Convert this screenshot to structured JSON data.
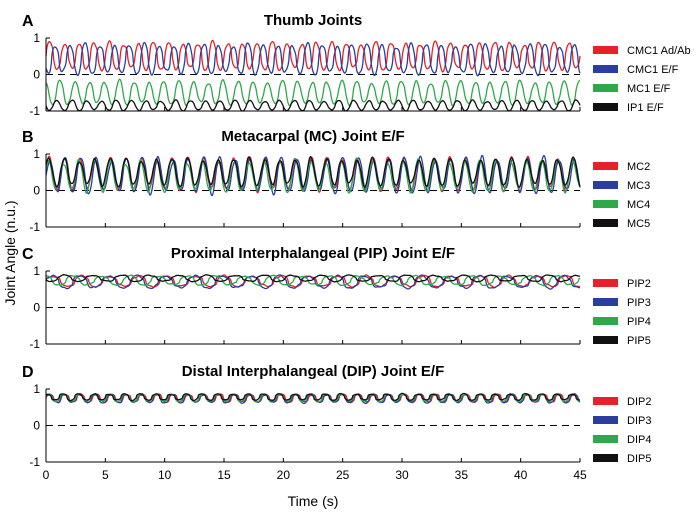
{
  "figure": {
    "ylabel": "Joint Angle (n.u.)",
    "xlabel": "Time (s)",
    "x_ticks": [
      "0",
      "5",
      "10",
      "15",
      "20",
      "25",
      "30",
      "35",
      "40",
      "45"
    ],
    "y_ticks": [
      "1",
      "0",
      "-1"
    ]
  },
  "chart_data": [
    {
      "type": "line",
      "panel_letter": "A",
      "title": "Thumb Joints",
      "xlim": [
        0,
        45
      ],
      "ylim": [
        -1,
        1
      ],
      "zero_line": "dashed",
      "legend_position": "right",
      "series": [
        {
          "name": "CMC1 Ad/Ab",
          "color": "#e8202a",
          "base": 0.5,
          "amp": 0.35,
          "period": 1.25,
          "phase": 0.0,
          "shape": 0.6
        },
        {
          "name": "CMC1 E/F",
          "color": "#2a3f9d",
          "base": 0.42,
          "amp": 0.38,
          "period": 1.25,
          "phase": 0.62,
          "shape": 0.6
        },
        {
          "name": "MC1 E/F",
          "color": "#2fa84a",
          "base": -0.5,
          "amp": 0.3,
          "period": 1.25,
          "phase": 0.3,
          "shape": 0.8
        },
        {
          "name": "IP1 E/F",
          "color": "#111111",
          "base": -0.85,
          "amp": 0.13,
          "period": 1.25,
          "phase": 0.5,
          "shape": 0.8
        }
      ]
    },
    {
      "type": "line",
      "panel_letter": "B",
      "title": "Metacarpal (MC) Joint E/F",
      "xlim": [
        0,
        45
      ],
      "ylim": [
        -1,
        1
      ],
      "zero_line": "dashed",
      "legend_position": "right",
      "series": [
        {
          "name": "MC2",
          "color": "#e8202a",
          "base": 0.45,
          "amp": 0.42,
          "period": 1.3,
          "phase": 0.05,
          "shape": 0.9
        },
        {
          "name": "MC3",
          "color": "#2a3f9d",
          "base": 0.42,
          "amp": 0.45,
          "period": 1.3,
          "phase": 0.0,
          "shape": 0.9
        },
        {
          "name": "MC4",
          "color": "#2fa84a",
          "base": 0.4,
          "amp": 0.4,
          "period": 1.3,
          "phase": 0.1,
          "shape": 0.9
        },
        {
          "name": "MC5",
          "color": "#111111",
          "base": 0.5,
          "amp": 0.35,
          "period": 1.3,
          "phase": 0.08,
          "shape": 0.9
        }
      ]
    },
    {
      "type": "line",
      "panel_letter": "C",
      "title": "Proximal Interphalangeal (PIP) Joint E/F",
      "xlim": [
        0,
        45
      ],
      "ylim": [
        -1,
        1
      ],
      "zero_line": "dashed",
      "legend_position": "right",
      "series": [
        {
          "name": "PIP2",
          "color": "#e8202a",
          "base": 0.72,
          "amp": 0.14,
          "period": 2.4,
          "phase": 0.0,
          "shape": 0.5
        },
        {
          "name": "PIP3",
          "color": "#2a3f9d",
          "base": 0.7,
          "amp": 0.16,
          "period": 2.4,
          "phase": 0.05,
          "shape": 0.5
        },
        {
          "name": "PIP4",
          "color": "#2fa84a",
          "base": 0.74,
          "amp": 0.12,
          "period": 2.4,
          "phase": 0.3,
          "shape": 0.5
        },
        {
          "name": "PIP5",
          "color": "#111111",
          "base": 0.8,
          "amp": 0.08,
          "period": 2.4,
          "phase": 0.6,
          "shape": 0.5
        }
      ]
    },
    {
      "type": "line",
      "panel_letter": "D",
      "title": "Distal Interphalangeal (DIP) Joint E/F",
      "xlim": [
        0,
        45
      ],
      "ylim": [
        -1,
        1
      ],
      "zero_line": "dashed",
      "legend_position": "right",
      "series": [
        {
          "name": "DIP2",
          "color": "#e8202a",
          "base": 0.75,
          "amp": 0.1,
          "period": 1.3,
          "phase": 0.0,
          "shape": 0.4
        },
        {
          "name": "DIP3",
          "color": "#2a3f9d",
          "base": 0.74,
          "amp": 0.11,
          "period": 1.3,
          "phase": 0.05,
          "shape": 0.4
        },
        {
          "name": "DIP4",
          "color": "#2fa84a",
          "base": 0.76,
          "amp": 0.09,
          "period": 1.3,
          "phase": 0.1,
          "shape": 0.4
        },
        {
          "name": "DIP5",
          "color": "#111111",
          "base": 0.78,
          "amp": 0.08,
          "period": 1.3,
          "phase": 0.15,
          "shape": 0.4
        }
      ]
    }
  ]
}
